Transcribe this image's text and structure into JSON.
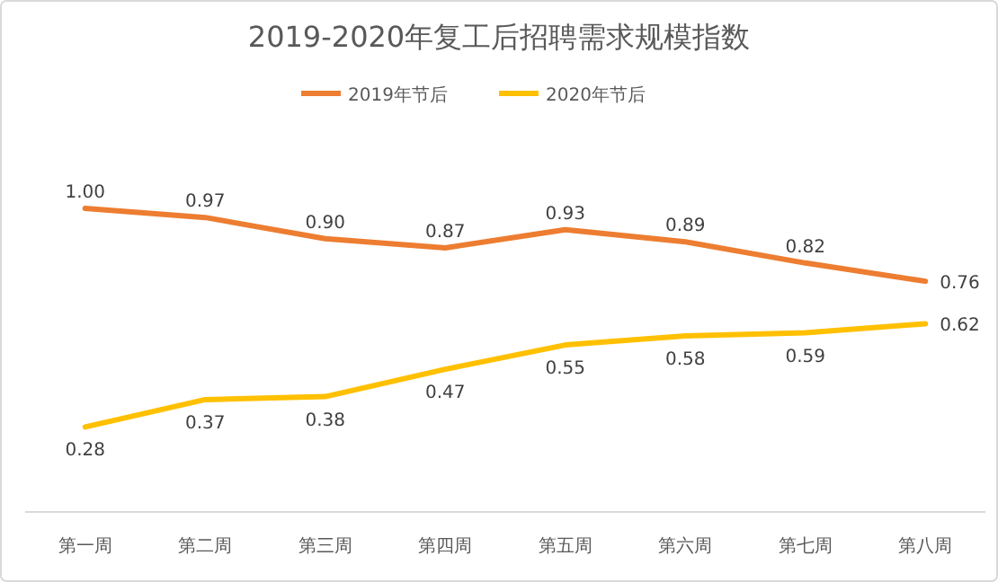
{
  "chart_data": {
    "type": "line",
    "title": "2019-2020年复工后招聘需求规模指数",
    "categories": [
      "第一周",
      "第二周",
      "第三周",
      "第四周",
      "第五周",
      "第六周",
      "第七周",
      "第八周"
    ],
    "series": [
      {
        "name": "2019年节后",
        "color": "#ed7d31",
        "values": [
          1.0,
          0.97,
          0.9,
          0.87,
          0.93,
          0.89,
          0.82,
          0.76
        ],
        "value_labels": [
          "1.00",
          "0.97",
          "0.90",
          "0.87",
          "0.93",
          "0.89",
          "0.82",
          "0.76"
        ]
      },
      {
        "name": "2020年节后",
        "color": "#ffc000",
        "values": [
          0.28,
          0.37,
          0.38,
          0.47,
          0.55,
          0.58,
          0.59,
          0.62
        ],
        "value_labels": [
          "0.28",
          "0.37",
          "0.38",
          "0.47",
          "0.55",
          "0.58",
          "0.59",
          "0.62"
        ]
      }
    ],
    "legend": "top",
    "grid": false,
    "marker": "none",
    "line_style": "solid"
  }
}
